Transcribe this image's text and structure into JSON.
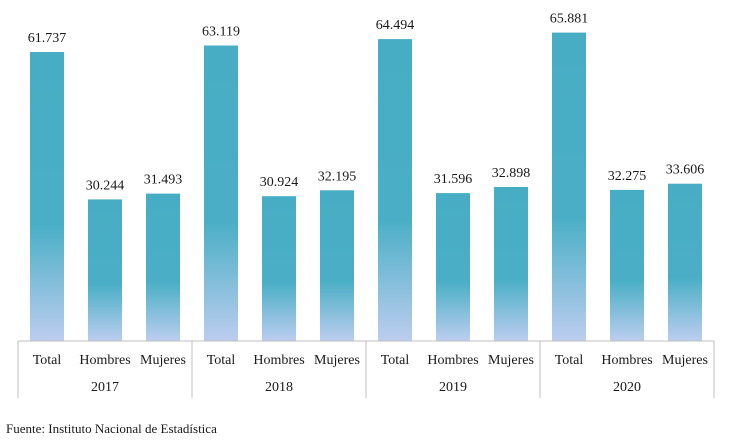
{
  "chart_data": {
    "type": "bar",
    "groups": [
      {
        "label": "2017",
        "categories": [
          "Total",
          "Hombres",
          "Mujeres"
        ],
        "values": [
          61737,
          30244,
          31493
        ],
        "value_labels": [
          "61.737",
          "30.244",
          "31.493"
        ]
      },
      {
        "label": "2018",
        "categories": [
          "Total",
          "Hombres",
          "Mujeres"
        ],
        "values": [
          63119,
          30924,
          32195
        ],
        "value_labels": [
          "63.119",
          "30.924",
          "32.195"
        ]
      },
      {
        "label": "2019",
        "categories": [
          "Total",
          "Hombres",
          "Mujeres"
        ],
        "values": [
          64494,
          31596,
          32898
        ],
        "value_labels": [
          "64.494",
          "31.596",
          "32.898"
        ]
      },
      {
        "label": "2020",
        "categories": [
          "Total",
          "Hombres",
          "Mujeres"
        ],
        "values": [
          65881,
          32275,
          33606
        ],
        "value_labels": [
          "65.881",
          "32.275",
          "33.606"
        ]
      }
    ],
    "ylim": [
      0,
      68000
    ],
    "grid": false,
    "legend": "none",
    "colors": {
      "bar_top": "#46adc4",
      "bar_mid": "#4aafc6",
      "bar_bottom": "#bccdef",
      "axis": "#bfbfbf"
    }
  },
  "source_note": "Fuente: Instituto Nacional de Estadística"
}
